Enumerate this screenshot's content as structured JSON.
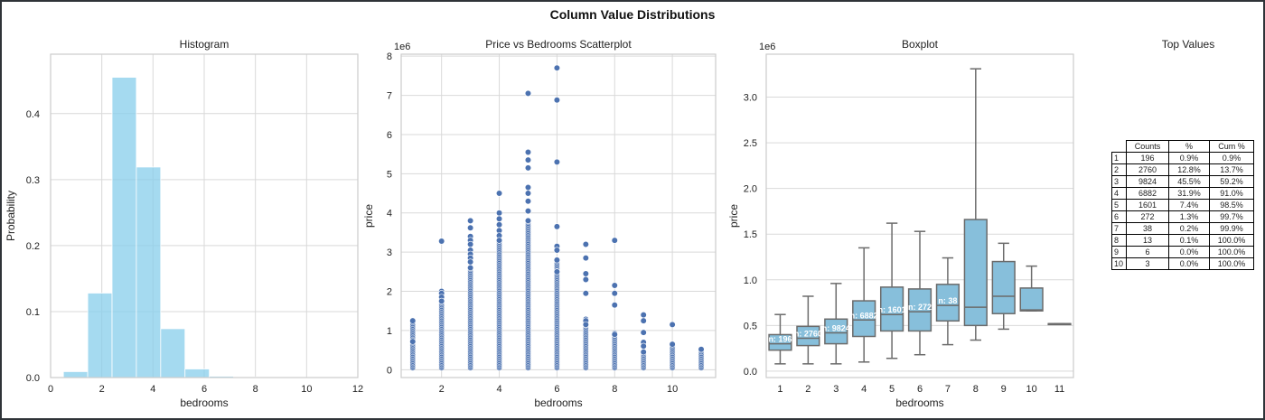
{
  "title": "Column Value Distributions",
  "chart_data": [
    {
      "type": "bar",
      "title": "Histogram",
      "xlabel": "bedrooms",
      "ylabel": "Probability",
      "xlim": [
        0,
        12
      ],
      "ylim": [
        0,
        0.49
      ],
      "xticks": [
        "0",
        "2",
        "4",
        "6",
        "8",
        "10",
        "12"
      ],
      "yticks": [
        "0.0",
        "0.1",
        "0.2",
        "0.3",
        "0.4"
      ],
      "bins": [
        {
          "x0": 0.5,
          "x1": 1.45,
          "value": 0.009
        },
        {
          "x0": 1.45,
          "x1": 2.4,
          "value": 0.128
        },
        {
          "x0": 2.4,
          "x1": 3.35,
          "value": 0.455
        },
        {
          "x0": 3.35,
          "x1": 4.3,
          "value": 0.319
        },
        {
          "x0": 4.3,
          "x1": 5.25,
          "value": 0.074
        },
        {
          "x0": 5.25,
          "x1": 6.2,
          "value": 0.013
        },
        {
          "x0": 6.2,
          "x1": 7.15,
          "value": 0.002
        },
        {
          "x0": 7.15,
          "x1": 8.1,
          "value": 0.001
        }
      ],
      "grid": true,
      "color": "#87ceeb"
    },
    {
      "type": "scatter",
      "title": "Price vs Bedrooms Scatterplot",
      "xlabel": "bedrooms",
      "ylabel": "price",
      "offset_text": "1e6",
      "xlim": [
        0.6,
        11.5
      ],
      "ylim": [
        -0.2,
        8.05
      ],
      "xticks": [
        "2",
        "4",
        "6",
        "8",
        "10"
      ],
      "yticks": [
        "0",
        "1",
        "2",
        "3",
        "4",
        "5",
        "6",
        "7",
        "8"
      ],
      "grid": true,
      "color": "#4c72b0",
      "columns": [
        {
          "x": 1,
          "max": 1.25,
          "outliers": [
            1.25,
            0.72
          ]
        },
        {
          "x": 2,
          "max": 2.0,
          "outliers": [
            3.28,
            2.0,
            1.95,
            1.85,
            1.75
          ]
        },
        {
          "x": 3,
          "max": 2.6,
          "outliers": [
            3.8,
            3.62,
            3.4,
            3.3,
            3.2,
            3.05,
            2.95,
            2.85,
            2.75,
            2.6
          ]
        },
        {
          "x": 4,
          "max": 3.3,
          "outliers": [
            4.5,
            4.0,
            3.85,
            3.7,
            3.55,
            3.42,
            3.3
          ]
        },
        {
          "x": 5,
          "max": 3.8,
          "outliers": [
            7.05,
            5.55,
            5.35,
            5.15,
            4.65,
            4.5,
            4.3,
            4.05,
            3.8
          ]
        },
        {
          "x": 6,
          "max": 2.8,
          "outliers": [
            7.7,
            6.88,
            5.3,
            3.65,
            3.15,
            3.05,
            2.8,
            2.5
          ]
        },
        {
          "x": 7,
          "max": 1.3,
          "outliers": [
            3.2,
            2.85,
            2.45,
            2.3,
            1.95,
            1.25,
            1.15
          ]
        },
        {
          "x": 8,
          "max": 0.95,
          "outliers": [
            3.3,
            2.15,
            1.95,
            1.65,
            0.9
          ]
        },
        {
          "x": 9,
          "max": 0.45,
          "outliers": [
            1.4,
            1.25,
            0.95,
            0.7,
            0.6,
            0.45
          ]
        },
        {
          "x": 10,
          "max": 0.65,
          "outliers": [
            1.15,
            0.65
          ]
        },
        {
          "x": 11,
          "max": 0.52,
          "outliers": [
            0.52
          ]
        }
      ]
    },
    {
      "type": "box",
      "title": "Boxplot",
      "xlabel": "bedrooms",
      "ylabel": "price",
      "offset_text": "1e6",
      "ylim": [
        -0.07,
        3.47
      ],
      "yticks": [
        "0.0",
        "0.5",
        "1.0",
        "1.5",
        "2.0",
        "2.5",
        "3.0"
      ],
      "grid": true,
      "color": "#87bfdb",
      "boxes": [
        {
          "cat": "1",
          "whislo": 0.08,
          "q1": 0.23,
          "med": 0.3,
          "q3": 0.4,
          "whishi": 0.62,
          "n_label": "n: 196"
        },
        {
          "cat": "2",
          "whislo": 0.08,
          "q1": 0.28,
          "med": 0.36,
          "q3": 0.49,
          "whishi": 0.82,
          "n_label": "n: 2760"
        },
        {
          "cat": "3",
          "whislo": 0.08,
          "q1": 0.3,
          "med": 0.42,
          "q3": 0.57,
          "whishi": 0.96,
          "n_label": "n: 9824"
        },
        {
          "cat": "4",
          "whislo": 0.1,
          "q1": 0.38,
          "med": 0.56,
          "q3": 0.77,
          "whishi": 1.35,
          "n_label": "n: 6882"
        },
        {
          "cat": "5",
          "whislo": 0.14,
          "q1": 0.44,
          "med": 0.62,
          "q3": 0.92,
          "whishi": 1.62,
          "n_label": "n: 1601"
        },
        {
          "cat": "6",
          "whislo": 0.18,
          "q1": 0.44,
          "med": 0.65,
          "q3": 0.9,
          "whishi": 1.53,
          "n_label": "n: 272"
        },
        {
          "cat": "7",
          "whislo": 0.29,
          "q1": 0.55,
          "med": 0.72,
          "q3": 0.95,
          "whishi": 1.24,
          "n_label": "n: 38"
        },
        {
          "cat": "8",
          "whislo": 0.34,
          "q1": 0.5,
          "med": 0.7,
          "q3": 1.66,
          "whishi": 3.31,
          "n_label": ""
        },
        {
          "cat": "9",
          "whislo": 0.46,
          "q1": 0.63,
          "med": 0.82,
          "q3": 1.2,
          "whishi": 1.4,
          "n_label": ""
        },
        {
          "cat": "10",
          "whislo": 0.66,
          "q1": 0.66,
          "med": 0.67,
          "q3": 0.91,
          "whishi": 1.15,
          "n_label": ""
        },
        {
          "cat": "11",
          "whislo": 0.52,
          "q1": 0.52,
          "med": 0.52,
          "q3": 0.52,
          "whishi": 0.52,
          "n_label": ""
        }
      ]
    },
    {
      "type": "table",
      "title": "Top Values",
      "columns": [
        "Counts",
        "%",
        "Cum %"
      ],
      "rows": [
        [
          "1",
          "196",
          "0.9%",
          "0.9%"
        ],
        [
          "2",
          "2760",
          "12.8%",
          "13.7%"
        ],
        [
          "3",
          "9824",
          "45.5%",
          "59.2%"
        ],
        [
          "4",
          "6882",
          "31.9%",
          "91.0%"
        ],
        [
          "5",
          "1601",
          "7.4%",
          "98.5%"
        ],
        [
          "6",
          "272",
          "1.3%",
          "99.7%"
        ],
        [
          "7",
          "38",
          "0.2%",
          "99.9%"
        ],
        [
          "8",
          "13",
          "0.1%",
          "100.0%"
        ],
        [
          "9",
          "6",
          "0.0%",
          "100.0%"
        ],
        [
          "10",
          "3",
          "0.0%",
          "100.0%"
        ]
      ]
    }
  ]
}
